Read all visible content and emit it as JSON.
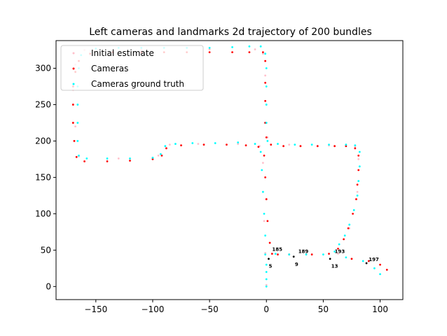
{
  "chart_data": {
    "type": "scatter",
    "title": "Left cameras and landmarks 2d trajectory of 200 bundles",
    "xlabel": "",
    "ylabel": "",
    "xlim": [
      -185,
      120
    ],
    "ylim": [
      -18,
      338
    ],
    "xticks": [
      -150,
      -100,
      -50,
      0,
      50,
      100
    ],
    "yticks": [
      0,
      50,
      100,
      150,
      200,
      250,
      300
    ],
    "grid": false,
    "legend_position": "top-left",
    "colors": {
      "initial_estimate": "#ffc0cb",
      "cameras": "#ff0000",
      "ground_truth": "#00ffff",
      "annotations": "#000000"
    },
    "series": [
      {
        "name": "Initial estimate",
        "color": "#ffc0cb",
        "points": [
          [
            0,
            2
          ],
          [
            -1,
            46
          ],
          [
            -2,
            90
          ],
          [
            -3,
            130
          ],
          [
            -3,
            170
          ],
          [
            -6,
            193
          ],
          [
            -25,
            196
          ],
          [
            -60,
            196
          ],
          [
            -85,
            195
          ],
          [
            -95,
            180
          ],
          [
            -130,
            176
          ],
          [
            -165,
            179
          ],
          [
            -168,
            220
          ],
          [
            -170,
            270
          ],
          [
            -168,
            305
          ],
          [
            -160,
            325
          ],
          [
            -110,
            325
          ],
          [
            -50,
            326
          ],
          [
            -10,
            326
          ],
          [
            -3,
            320
          ],
          [
            -1,
            290
          ],
          [
            0,
            250
          ],
          [
            1,
            205
          ],
          [
            20,
            195
          ],
          [
            55,
            194
          ],
          [
            78,
            193
          ],
          [
            81,
            175
          ],
          [
            80,
            130
          ],
          [
            73,
            80
          ],
          [
            63,
            45
          ]
        ]
      },
      {
        "name": "Cameras",
        "color": "#ff0000",
        "points": [
          [
            5,
            45
          ],
          [
            3,
            60
          ],
          [
            1,
            90
          ],
          [
            0,
            120
          ],
          [
            -1,
            150
          ],
          [
            -2,
            180
          ],
          [
            -7,
            192
          ],
          [
            -18,
            194
          ],
          [
            -35,
            195
          ],
          [
            -55,
            195
          ],
          [
            -75,
            194
          ],
          [
            -88,
            190
          ],
          [
            -92,
            180
          ],
          [
            -100,
            175
          ],
          [
            -120,
            173
          ],
          [
            -140,
            172
          ],
          [
            -160,
            172
          ],
          [
            -167,
            178
          ],
          [
            -169,
            200
          ],
          [
            -170,
            225
          ],
          [
            -170,
            250
          ],
          [
            -170,
            275
          ],
          [
            -168,
            295
          ],
          [
            -165,
            310
          ],
          [
            -155,
            320
          ],
          [
            -135,
            322
          ],
          [
            -110,
            322
          ],
          [
            -90,
            322
          ],
          [
            -70,
            322
          ],
          [
            -50,
            322
          ],
          [
            -30,
            322
          ],
          [
            -15,
            322
          ],
          [
            -3,
            322
          ],
          [
            -1,
            310
          ],
          [
            -1,
            280
          ],
          [
            -1,
            255
          ],
          [
            -1,
            225
          ],
          [
            0,
            205
          ],
          [
            4,
            195
          ],
          [
            15,
            193
          ],
          [
            30,
            193
          ],
          [
            45,
            193
          ],
          [
            60,
            193
          ],
          [
            70,
            193
          ],
          [
            78,
            190
          ],
          [
            81,
            180
          ],
          [
            81,
            160
          ],
          [
            80,
            140
          ],
          [
            79,
            120
          ],
          [
            76,
            100
          ],
          [
            72,
            80
          ],
          [
            68,
            65
          ],
          [
            63,
            52
          ],
          [
            55,
            45
          ],
          [
            40,
            44
          ],
          [
            20,
            44
          ],
          [
            10,
            44
          ],
          [
            75,
            38
          ],
          [
            90,
            35
          ],
          [
            100,
            30
          ],
          [
            106,
            23
          ]
        ]
      },
      {
        "name": "Cameras ground truth",
        "color": "#00ffff",
        "points": [
          [
            0,
            0
          ],
          [
            0,
            10
          ],
          [
            0,
            20
          ],
          [
            0,
            30
          ],
          [
            -1,
            44
          ],
          [
            -1,
            70
          ],
          [
            -2,
            100
          ],
          [
            -3,
            130
          ],
          [
            -4,
            160
          ],
          [
            -5,
            185
          ],
          [
            -10,
            196
          ],
          [
            -25,
            198
          ],
          [
            -45,
            197
          ],
          [
            -65,
            197
          ],
          [
            -80,
            196
          ],
          [
            -89,
            193
          ],
          [
            -93,
            182
          ],
          [
            -100,
            177
          ],
          [
            -120,
            176
          ],
          [
            -140,
            176
          ],
          [
            -158,
            176
          ],
          [
            -165,
            180
          ],
          [
            -166,
            200
          ],
          [
            -166,
            225
          ],
          [
            -166,
            250
          ],
          [
            -166,
            275
          ],
          [
            -165,
            300
          ],
          [
            -163,
            318
          ],
          [
            -150,
            327
          ],
          [
            -130,
            328
          ],
          [
            -110,
            328
          ],
          [
            -90,
            328
          ],
          [
            -70,
            328
          ],
          [
            -50,
            328
          ],
          [
            -30,
            329
          ],
          [
            -15,
            330
          ],
          [
            -5,
            330
          ],
          [
            -1,
            320
          ],
          [
            0,
            300
          ],
          [
            0,
            275
          ],
          [
            0,
            250
          ],
          [
            0,
            225
          ],
          [
            1,
            200
          ],
          [
            10,
            196
          ],
          [
            25,
            195
          ],
          [
            40,
            195
          ],
          [
            55,
            195
          ],
          [
            70,
            195
          ],
          [
            78,
            194
          ],
          [
            82,
            185
          ],
          [
            82,
            165
          ],
          [
            81,
            145
          ],
          [
            80,
            125
          ],
          [
            77,
            105
          ],
          [
            73,
            85
          ],
          [
            69,
            70
          ],
          [
            64,
            58
          ],
          [
            60,
            48
          ],
          [
            50,
            44
          ],
          [
            35,
            44
          ],
          [
            20,
            44
          ],
          [
            8,
            45
          ],
          [
            70,
            40
          ],
          [
            85,
            35
          ],
          [
            95,
            25
          ],
          [
            100,
            17
          ]
        ]
      }
    ],
    "landmarks": [
      [
        2,
        38
      ],
      [
        24,
        41
      ],
      [
        56,
        38
      ],
      [
        88,
        32
      ]
    ],
    "annotations": [
      {
        "text": "185",
        "x": 5,
        "y": 49
      },
      {
        "text": "189",
        "x": 28,
        "y": 46
      },
      {
        "text": "193",
        "x": 60,
        "y": 46
      },
      {
        "text": "197",
        "x": 90,
        "y": 35
      },
      {
        "text": "5",
        "x": 2,
        "y": 26
      },
      {
        "text": "9",
        "x": 25,
        "y": 28
      },
      {
        "text": "13",
        "x": 57,
        "y": 26
      }
    ]
  }
}
